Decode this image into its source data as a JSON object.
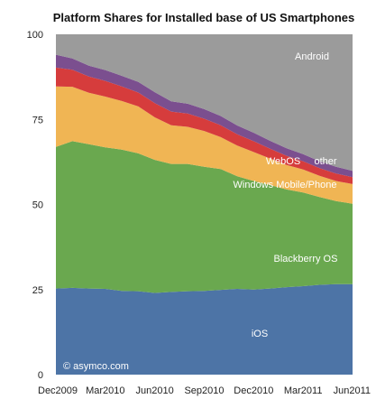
{
  "chart_data": {
    "type": "area",
    "stacked": true,
    "title": "Platform Shares for Installed base of US Smartphones",
    "ylim": [
      0,
      100
    ],
    "yticks": [
      0,
      25,
      50,
      75,
      100
    ],
    "xticks": [
      "Dec2009",
      "Mar2010",
      "Jun2010",
      "Sep2010",
      "Dec2010",
      "Mar2011",
      "Jun2011"
    ],
    "x": [
      "Dec2009",
      "Jan2010",
      "Feb2010",
      "Mar2010",
      "Apr2010",
      "May2010",
      "Jun2010",
      "Jul2010",
      "Aug2010",
      "Sep2010",
      "Oct2010",
      "Nov2010",
      "Dec2010",
      "Jan2011",
      "Feb2011",
      "Mar2011",
      "Apr2011",
      "May2011",
      "Jun2011"
    ],
    "grid": false,
    "legend": "none",
    "series": [
      {
        "name": "iOS",
        "color": "#4d74a6",
        "values": [
          25.3,
          25.5,
          25.3,
          25.2,
          24.6,
          24.5,
          24.0,
          24.3,
          24.5,
          24.6,
          24.9,
          25.2,
          25.0,
          25.3,
          25.7,
          26.0,
          26.4,
          26.6,
          26.6
        ]
      },
      {
        "name": "Blackberry OS",
        "color": "#6aa84f",
        "values": [
          41.6,
          43.1,
          42.4,
          41.6,
          41.5,
          40.5,
          39.1,
          37.6,
          37.4,
          36.5,
          35.5,
          33.1,
          31.9,
          30.4,
          28.7,
          27.5,
          25.8,
          24.4,
          23.6
        ]
      },
      {
        "name": "Windows Mobile/Phone",
        "color": "#f0b554",
        "values": [
          17.8,
          16.0,
          15.1,
          14.9,
          14.3,
          13.8,
          12.5,
          11.4,
          10.9,
          10.5,
          9.4,
          9.0,
          8.5,
          7.8,
          7.2,
          6.8,
          6.2,
          5.9,
          5.8
        ]
      },
      {
        "name": "WebOS",
        "color": "#d63c3c",
        "values": [
          5.5,
          5.0,
          4.8,
          4.6,
          4.3,
          4.1,
          4.2,
          4.0,
          3.9,
          3.6,
          3.5,
          3.3,
          3.2,
          2.9,
          2.7,
          2.4,
          2.3,
          2.2,
          2.0
        ]
      },
      {
        "name": "other",
        "color": "#7b4f8f",
        "values": [
          3.8,
          3.3,
          3.2,
          3.2,
          3.1,
          3.1,
          3.2,
          3.0,
          2.9,
          2.8,
          2.7,
          2.6,
          2.5,
          2.3,
          2.2,
          2.1,
          2.0,
          2.0,
          1.9
        ]
      },
      {
        "name": "Android",
        "color": "#9b9b9b",
        "values": [
          6.0,
          7.1,
          9.2,
          10.5,
          12.2,
          14.0,
          17.0,
          19.7,
          20.4,
          22.0,
          24.0,
          26.8,
          28.9,
          31.3,
          33.5,
          35.2,
          37.3,
          38.9,
          40.1
        ]
      }
    ],
    "labels": [
      "Android",
      "WebOS",
      "other",
      "Windows Mobile/Phone",
      "Blackberry OS",
      "iOS"
    ],
    "credit": "© asymco.com"
  }
}
